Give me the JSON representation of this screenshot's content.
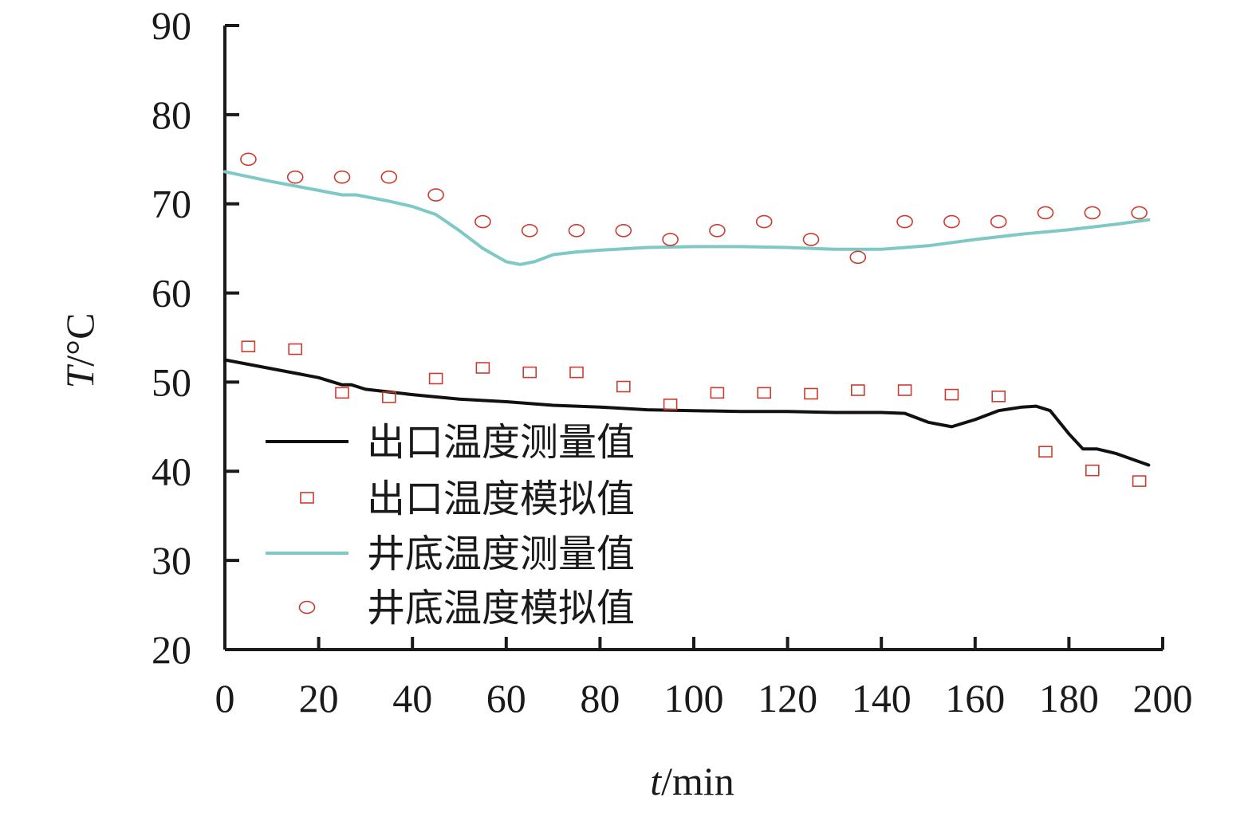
{
  "chart_data": {
    "type": "line",
    "xlabel_var": "t",
    "xlabel_unit": "/min",
    "ylabel_var": "T",
    "ylabel_unit": "/°C",
    "xlim": [
      0,
      200
    ],
    "ylim": [
      20,
      90
    ],
    "xticks": [
      "0",
      "20",
      "40",
      "60",
      "80",
      "100",
      "120",
      "140",
      "160",
      "180",
      "200"
    ],
    "yticks": [
      "20",
      "30",
      "40",
      "50",
      "60",
      "70",
      "80",
      "90"
    ],
    "grid": false,
    "legend_position": "center-left",
    "series": [
      {
        "name": "出口温度测量值",
        "kind": "line",
        "color": "#111111",
        "x": [
          0,
          10,
          20,
          25,
          27,
          30,
          40,
          50,
          60,
          70,
          80,
          90,
          100,
          110,
          120,
          130,
          140,
          145,
          150,
          155,
          160,
          165,
          170,
          173,
          176,
          180,
          183,
          186,
          190,
          197
        ],
        "y": [
          52.5,
          51.5,
          50.5,
          49.7,
          49.7,
          49.2,
          48.6,
          48.1,
          47.8,
          47.4,
          47.2,
          46.9,
          46.8,
          46.7,
          46.7,
          46.6,
          46.6,
          46.5,
          45.5,
          45.0,
          45.8,
          46.8,
          47.2,
          47.3,
          46.8,
          44.2,
          42.5,
          42.5,
          42.0,
          40.7
        ]
      },
      {
        "name": "出口温度模拟值",
        "kind": "scatter",
        "marker": "square",
        "color": "#cc3b2e",
        "x": [
          5,
          15,
          25,
          35,
          45,
          55,
          65,
          75,
          85,
          95,
          105,
          115,
          125,
          135,
          145,
          155,
          165,
          175,
          185,
          195
        ],
        "y": [
          54.0,
          53.7,
          48.8,
          48.3,
          50.4,
          51.6,
          51.1,
          51.1,
          49.5,
          47.5,
          48.8,
          48.8,
          48.7,
          49.1,
          49.1,
          48.6,
          48.4,
          42.2,
          40.1,
          38.9
        ]
      },
      {
        "name": "井底温度测量值",
        "kind": "line",
        "color": "#7ec8c6",
        "x": [
          0,
          10,
          20,
          25,
          28,
          35,
          40,
          45,
          50,
          55,
          60,
          63,
          66,
          70,
          75,
          80,
          90,
          100,
          110,
          120,
          130,
          140,
          150,
          160,
          170,
          180,
          190,
          197
        ],
        "y": [
          73.6,
          72.5,
          71.5,
          71.0,
          71.0,
          70.3,
          69.7,
          68.8,
          67.0,
          65.0,
          63.5,
          63.2,
          63.5,
          64.3,
          64.6,
          64.8,
          65.1,
          65.2,
          65.2,
          65.1,
          64.9,
          64.9,
          65.3,
          66.0,
          66.6,
          67.1,
          67.7,
          68.2
        ]
      },
      {
        "name": "井底温度模拟值",
        "kind": "scatter",
        "marker": "circle",
        "color": "#cc3b2e",
        "x": [
          5,
          15,
          25,
          35,
          45,
          55,
          65,
          75,
          85,
          95,
          105,
          115,
          125,
          135,
          145,
          155,
          165,
          175,
          185,
          195
        ],
        "y": [
          75.0,
          73.0,
          73.0,
          73.0,
          71.0,
          68.0,
          67.0,
          67.0,
          67.0,
          66.0,
          67.0,
          68.0,
          66.0,
          64.0,
          68.0,
          68.0,
          68.0,
          69.0,
          69.0,
          69.0
        ]
      }
    ]
  }
}
